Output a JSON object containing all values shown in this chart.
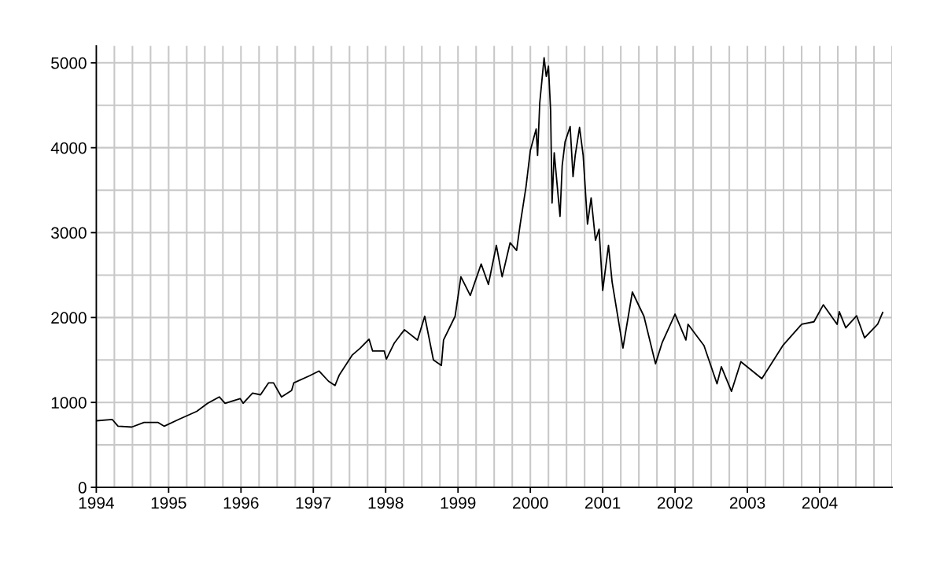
{
  "chart_data": {
    "type": "line",
    "x": [
      1994.01,
      1994.22,
      1994.3,
      1994.49,
      1994.66,
      1994.85,
      1994.94,
      1995.14,
      1995.39,
      1995.54,
      1995.7,
      1995.78,
      1995.99,
      1996.03,
      1996.16,
      1996.27,
      1996.38,
      1996.45,
      1996.56,
      1996.7,
      1996.73,
      1996.95,
      1997.08,
      1997.21,
      1997.3,
      1997.36,
      1997.54,
      1997.65,
      1997.77,
      1997.82,
      1997.98,
      1998.01,
      1998.12,
      1998.2,
      1998.26,
      1998.44,
      1998.54,
      1998.66,
      1998.77,
      1998.8,
      1998.96,
      1999.04,
      1999.17,
      1999.32,
      1999.42,
      1999.53,
      1999.61,
      1999.72,
      1999.81,
      1999.86,
      1999.94,
      2000.0,
      2000.08,
      2000.1,
      2000.13,
      2000.19,
      2000.22,
      2000.25,
      2000.28,
      2000.3,
      2000.33,
      2000.41,
      2000.44,
      2000.48,
      2000.55,
      2000.59,
      2000.62,
      2000.68,
      2000.73,
      2000.79,
      2000.84,
      2000.9,
      2000.95,
      2001.0,
      2001.08,
      2001.13,
      2001.28,
      2001.41,
      2001.57,
      2001.73,
      2001.82,
      2002.0,
      2002.15,
      2002.18,
      2002.4,
      2002.58,
      2002.64,
      2002.78,
      2002.91,
      2003.2,
      2003.49,
      2003.75,
      2003.92,
      2004.05,
      2004.24,
      2004.27,
      2004.36,
      2004.51,
      2004.62,
      2004.8,
      2004.87
    ],
    "series": [
      {
        "color": "#000000",
        "values": [
          784,
          800,
          720,
          710,
          765,
          765,
          720,
          800,
          895,
          990,
          1065,
          990,
          1045,
          990,
          1110,
          1090,
          1230,
          1230,
          1065,
          1140,
          1230,
          1315,
          1370,
          1250,
          1200,
          1325,
          1560,
          1640,
          1745,
          1605,
          1605,
          1510,
          1700,
          1790,
          1856,
          1735,
          2015,
          1500,
          1436,
          1735,
          2015,
          2480,
          2260,
          2630,
          2390,
          2850,
          2480,
          2880,
          2790,
          3100,
          3540,
          3970,
          4220,
          3910,
          4530,
          5060,
          4840,
          4960,
          4440,
          3350,
          3940,
          3190,
          3790,
          4070,
          4250,
          3660,
          3910,
          4240,
          3910,
          3100,
          3410,
          2910,
          3040,
          2320,
          2850,
          2420,
          1640,
          2300,
          2015,
          1455,
          1700,
          2040,
          1735,
          1920,
          1670,
          1220,
          1420,
          1130,
          1480,
          1280,
          1670,
          1920,
          1950,
          2150,
          1920,
          2070,
          1880,
          2020,
          1760,
          1920,
          2060
        ]
      }
    ],
    "xlim": [
      1994,
      2005
    ],
    "xticks": [
      1994,
      {
        "value": 1994.25,
        "label": null
      },
      {
        "value": 1994.5,
        "label": null
      },
      {
        "value": 1994.75,
        "label": null
      },
      1995,
      {
        "value": 1995.25,
        "label": null
      },
      {
        "value": 1995.5,
        "label": null
      },
      {
        "value": 1995.75,
        "label": null
      },
      1996,
      {
        "value": 1996.25,
        "label": null
      },
      {
        "value": 1996.5,
        "label": null
      },
      {
        "value": 1996.75,
        "label": null
      },
      1997,
      {
        "value": 1997.25,
        "label": null
      },
      {
        "value": 1997.5,
        "label": null
      },
      {
        "value": 1997.75,
        "label": null
      },
      1998,
      {
        "value": 1998.25,
        "label": null
      },
      {
        "value": 1998.5,
        "label": null
      },
      {
        "value": 1998.75,
        "label": null
      },
      1999,
      {
        "value": 1999.25,
        "label": null
      },
      {
        "value": 1999.5,
        "label": null
      },
      {
        "value": 1999.75,
        "label": null
      },
      2000,
      {
        "value": 2000.25,
        "label": null
      },
      {
        "value": 2000.5,
        "label": null
      },
      {
        "value": 2000.75,
        "label": null
      },
      2001,
      {
        "value": 2001.25,
        "label": null
      },
      {
        "value": 2001.5,
        "label": null
      },
      {
        "value": 2001.75,
        "label": null
      },
      2002,
      {
        "value": 2002.25,
        "label": null
      },
      {
        "value": 2002.5,
        "label": null
      },
      {
        "value": 2002.75,
        "label": null
      },
      2003,
      {
        "value": 2003.25,
        "label": null
      },
      {
        "value": 2003.5,
        "label": null
      },
      {
        "value": 2003.75,
        "label": null
      },
      2004,
      {
        "value": 2004.25,
        "label": null
      },
      {
        "value": 2004.5,
        "label": null
      },
      {
        "value": 2004.75,
        "label": null
      },
      {
        "value": 2005,
        "label": null
      }
    ],
    "ylim": [
      0,
      5200
    ],
    "yticks": [
      0,
      {
        "value": 500,
        "label": null
      },
      1000,
      {
        "value": 1500,
        "label": null
      },
      2000,
      {
        "value": 2500,
        "label": null
      },
      3000,
      {
        "value": 3500,
        "label": null
      },
      4000,
      {
        "value": 4500,
        "label": null
      },
      5000
    ],
    "grid": true
  }
}
